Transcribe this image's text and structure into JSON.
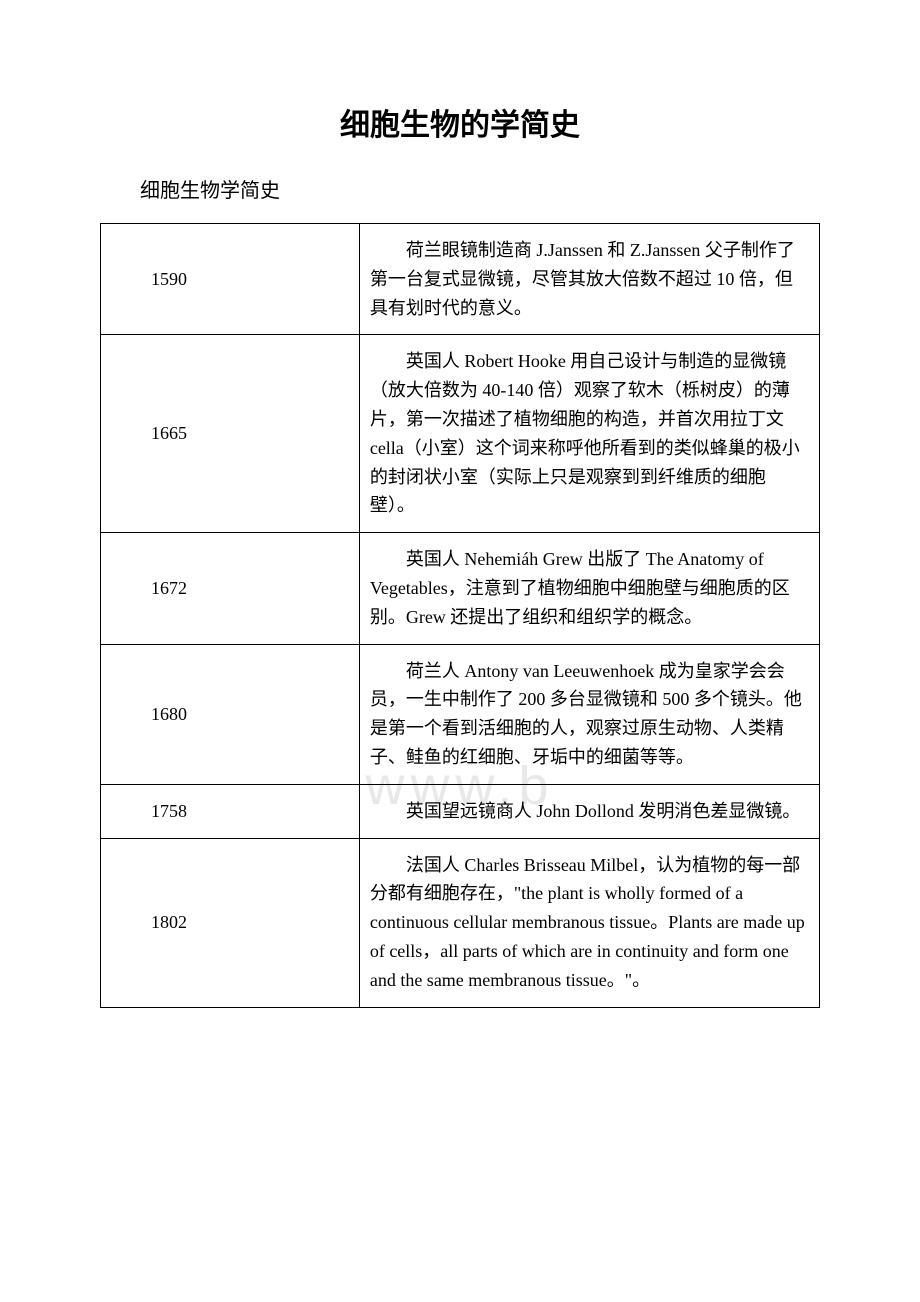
{
  "title": "细胞生物的学简史",
  "subtitle": "细胞生物学简史",
  "watermark": "www.b",
  "table": {
    "columns": [
      "year",
      "description"
    ],
    "column_widths": [
      "36%",
      "64%"
    ],
    "border_color": "#000000",
    "text_color": "#000000",
    "background_color": "#ffffff",
    "font_size": 18,
    "rows": [
      {
        "year": "1590",
        "description": "荷兰眼镜制造商 J.Janssen 和 Z.Janssen 父子制作了第一台复式显微镜，尽管其放大倍数不超过 10 倍，但具有划时代的意义。"
      },
      {
        "year": "1665",
        "description": "英国人 Robert Hooke 用自己设计与制造的显微镜（放大倍数为 40-140 倍）观察了软木（栎树皮）的薄片，第一次描述了植物细胞的构造，并首次用拉丁文 cella（小室）这个词来称呼他所看到的类似蜂巢的极小的封闭状小室（实际上只是观察到到纤维质的细胞壁）。"
      },
      {
        "year": "1672",
        "description": "英国人 Nehemiáh Grew 出版了 The Anatomy of Vegetables，注意到了植物细胞中细胞壁与细胞质的区别。Grew 还提出了组织和组织学的概念。"
      },
      {
        "year": "1680",
        "description": "荷兰人 Antony van Leeuwenhoek 成为皇家学会会员，一生中制作了 200 多台显微镜和 500 多个镜头。他是第一个看到活细胞的人，观察过原生动物、人类精子、鲑鱼的红细胞、牙垢中的细菌等等。"
      },
      {
        "year": "1758",
        "description": "英国望远镜商人 John Dollond 发明消色差显微镜。"
      },
      {
        "year": "1802",
        "description": "法国人 Charles Brisseau Milbel，认为植物的每一部分都有细胞存在，\"the plant is wholly formed of a continuous cellular membranous tissue。Plants are made up of cells，all parts of which are in continuity and form one and the same membranous tissue。\"。"
      }
    ]
  }
}
